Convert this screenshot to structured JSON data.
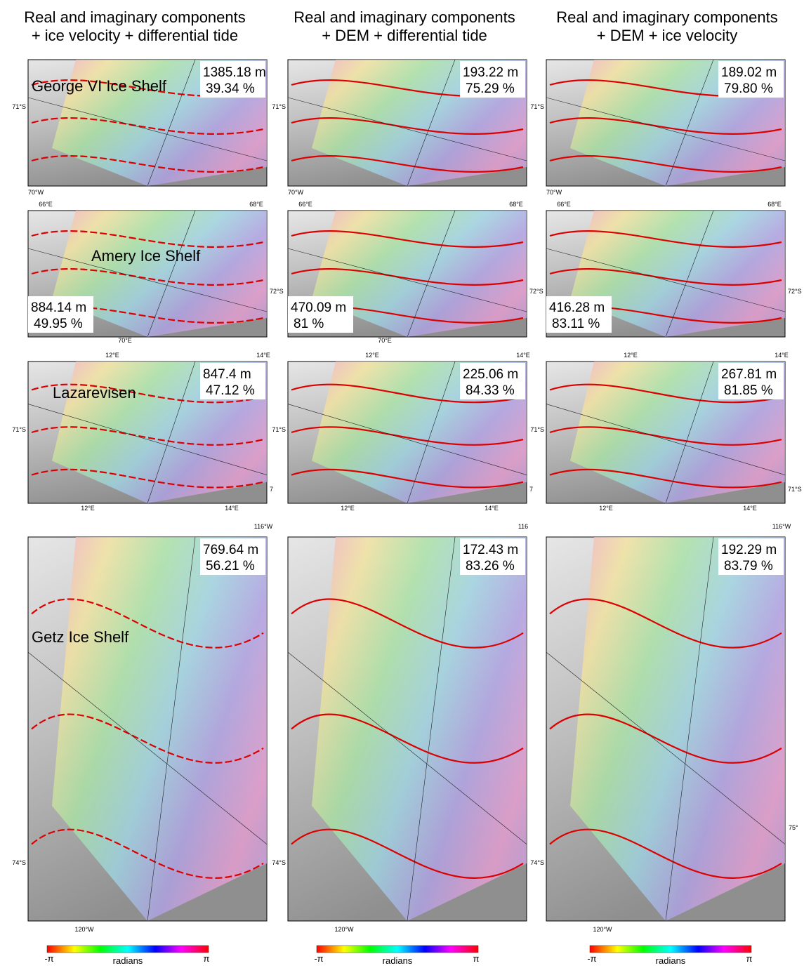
{
  "columns": [
    {
      "title": [
        "Real and imaginary components",
        "+ ice velocity + differential tide"
      ],
      "colorbar": {
        "min": "-π",
        "label": "radians",
        "max": "π"
      }
    },
    {
      "title": [
        "Real and imaginary components",
        "+ DEM + differential tide"
      ],
      "colorbar": {
        "min": "-π",
        "label": "radians",
        "max": "π"
      }
    },
    {
      "title": [
        "Real and imaginary components",
        "+ DEM + ice velocity"
      ],
      "colorbar": {
        "min": "-π",
        "label": "radians",
        "max": "π"
      }
    }
  ],
  "rows": [
    {
      "region": "George VI Ice Shelf",
      "panels": [
        {
          "distance": "1385.18 m",
          "percent": "39.34 %",
          "coords": [
            "71°S",
            "70°W"
          ]
        },
        {
          "distance": "193.22 m",
          "percent": "75.29 %",
          "coords": [
            "71°S",
            "70°W"
          ]
        },
        {
          "distance": "189.02 m",
          "percent": "79.80 %",
          "coords": [
            "71°S",
            "70°W"
          ]
        }
      ]
    },
    {
      "region": "Amery Ice Shelf",
      "panels": [
        {
          "distance": "884.14 m",
          "percent": "49.95 %",
          "coords": [
            "66°E",
            "68°E",
            "72°S",
            "70°E"
          ]
        },
        {
          "distance": "470.09 m",
          "percent": "81 %",
          "coords": [
            "66°E",
            "68°E",
            "72°S",
            "70°E"
          ]
        },
        {
          "distance": "416.28 m",
          "percent": "83.11 %",
          "coords": [
            "66°E",
            "68°E",
            "72°S"
          ]
        }
      ]
    },
    {
      "region": "Lazarevisen",
      "panels": [
        {
          "distance": "847.4 m",
          "percent": "47.12 %",
          "coords": [
            "12°E",
            "14°E",
            "71°S",
            "12°E",
            "14°E",
            "7"
          ]
        },
        {
          "distance": "225.06 m",
          "percent": "84.33 %",
          "coords": [
            "12°E",
            "14°E",
            "71°S",
            "12°E",
            "14°E",
            "7"
          ]
        },
        {
          "distance": "267.81 m",
          "percent": "81.85 %",
          "coords": [
            "12°E",
            "14°E",
            "71°S",
            "12°E",
            "14°E",
            "71°S"
          ]
        }
      ]
    },
    {
      "region": "Getz Ice Shelf",
      "panels": [
        {
          "distance": "769.64 m",
          "percent": "56.21 %",
          "coords": [
            "116°W",
            "74°S",
            "120°W"
          ]
        },
        {
          "distance": "172.43 m",
          "percent": "83.26 %",
          "coords": [
            "116",
            "74°S",
            "120°W"
          ]
        },
        {
          "distance": "192.29 m",
          "percent": "83.79 %",
          "coords": [
            "116°W",
            "74°S",
            "120°W",
            "75°"
          ]
        }
      ]
    }
  ]
}
